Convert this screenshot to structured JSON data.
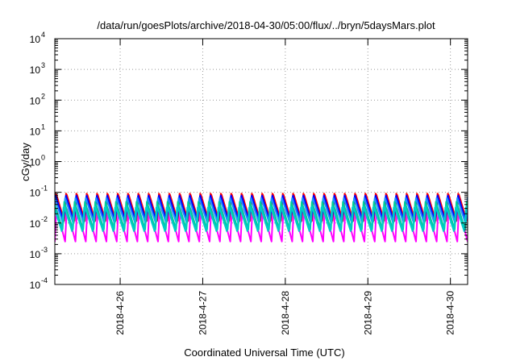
{
  "chart_data": {
    "type": "line",
    "title": "/data/run/goesPlots/archive/2018-04-30/05:00/flux/../bryn/5daysMars.plot",
    "xlabel": "Coordinated Universal Time (UTC)",
    "ylabel": "cGy/day",
    "yscale": "log",
    "ylim": [
      0.0001,
      10000
    ],
    "xlim": [
      "2018-04-25 05:00",
      "2018-04-30 05:00"
    ],
    "y_ticks": [
      {
        "base": "10",
        "exp": "-4"
      },
      {
        "base": "10",
        "exp": "-3"
      },
      {
        "base": "10",
        "exp": "-2"
      },
      {
        "base": "10",
        "exp": "-1"
      },
      {
        "base": "10",
        "exp": "0"
      },
      {
        "base": "10",
        "exp": "1"
      },
      {
        "base": "10",
        "exp": "2"
      },
      {
        "base": "10",
        "exp": "3"
      },
      {
        "base": "10",
        "exp": "4"
      }
    ],
    "x_ticks": [
      "2018-4-26",
      "2018-4-27",
      "2018-4-28",
      "2018-4-29",
      "2018-4-30"
    ],
    "grid": true,
    "legend": "none",
    "sawtooth_period_hours": 3,
    "series": [
      {
        "color": "#ff00ff",
        "peak": 0.03,
        "trough": 0.0025
      },
      {
        "color": "#ff0000",
        "peak": 0.1,
        "trough": 0.011
      },
      {
        "color": "#0000ff",
        "peak": 0.09,
        "trough": 0.01
      },
      {
        "color": "#1e90ff",
        "peak": 0.07,
        "trough": 0.009
      },
      {
        "color": "#00cc99",
        "peak": 0.05,
        "trough": 0.006
      },
      {
        "color": "#00cccc",
        "peak": 0.04,
        "trough": 0.005
      }
    ]
  }
}
